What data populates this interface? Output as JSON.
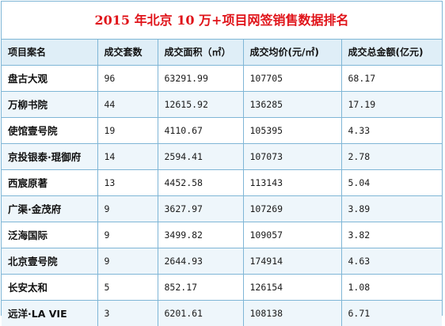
{
  "title": "2015 年北京 10 万+项目网签销售数据排名",
  "headers": [
    "项目案名",
    "成交套数",
    "成交面积（㎡）",
    "成交均价(元/㎡)",
    "成交总金额(亿元)"
  ],
  "rows": [
    [
      "盘古大观",
      "96",
      "63291.99",
      "107705",
      "68.17"
    ],
    [
      "万柳书院",
      "44",
      "12615.92",
      "136285",
      "17.19"
    ],
    [
      "使馆壹号院",
      "19",
      "4110.67",
      "105395",
      "4.33"
    ],
    [
      "京投银泰·琨御府",
      "14",
      "2594.41",
      "107073",
      "2.78"
    ],
    [
      "西宸原著",
      "13",
      "4452.58",
      "113143",
      "5.04"
    ],
    [
      "广渠·金茂府",
      "9",
      "3627.97",
      "107269",
      "3.89"
    ],
    [
      "泛海国际",
      "9",
      "3499.82",
      "109057",
      "3.82"
    ],
    [
      "北京壹号院",
      "9",
      "2644.93",
      "174914",
      "4.63"
    ],
    [
      "长安太和",
      "5",
      "852.17",
      "126154",
      "1.08"
    ],
    [
      "远洋·LA VIE",
      "3",
      "6201.61",
      "108138",
      "6.71"
    ]
  ],
  "colors": {
    "title": "#e0141a",
    "border": "#7fb6d6",
    "header_bg": "#dfeef7"
  }
}
